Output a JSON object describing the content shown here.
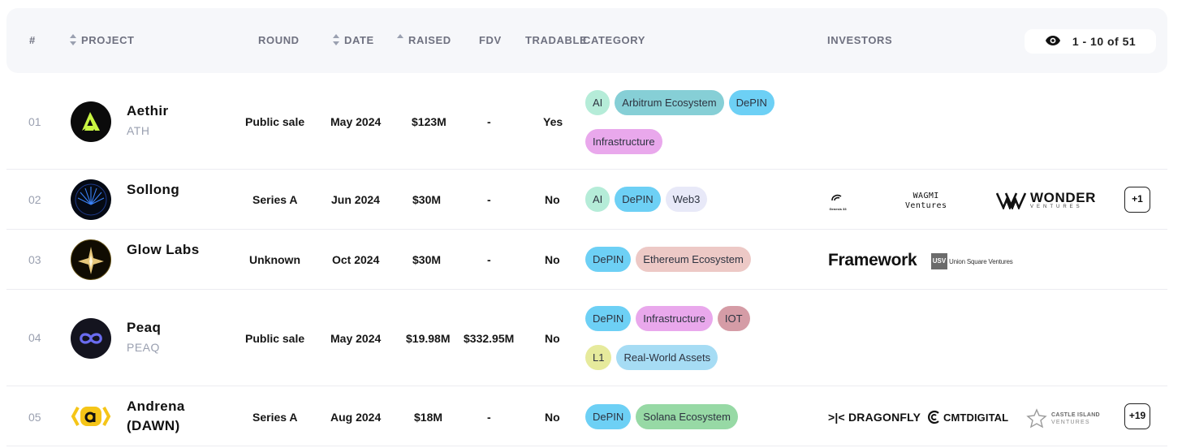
{
  "header": {
    "num": "#",
    "project": "PROJECT",
    "round": "ROUND",
    "date": "DATE",
    "raised": "RAISED",
    "fdv": "FDV",
    "tradable": "TRADABLE",
    "category": "CATEGORY",
    "investors": "INVESTORS",
    "pagination": "1 - 10 of 51"
  },
  "rows": [
    {
      "num": "01",
      "name": "Aethir",
      "symbol": "ATH",
      "round": "Public sale",
      "date": "May 2024",
      "raised": "$123M",
      "fdv": "-",
      "tradable": "Yes",
      "tags": [
        "AI",
        "Arbitrum Ecosystem",
        "DePIN",
        "Infrastructure"
      ]
    },
    {
      "num": "02",
      "name": "Sollong",
      "round": "Series A",
      "date": "Jun 2024",
      "raised": "$30M",
      "fdv": "-",
      "tradable": "No",
      "tags": [
        "AI",
        "DePIN",
        "Web3"
      ],
      "investors": [
        "Genesis 33",
        "WAGMI",
        "Ventures",
        "WONDER",
        "VENTURES"
      ],
      "more": "+1"
    },
    {
      "num": "03",
      "name": "Glow Labs",
      "round": "Unknown",
      "date": "Oct 2024",
      "raised": "$30M",
      "fdv": "-",
      "tradable": "No",
      "tags": [
        "DePIN",
        "Ethereum Ecosystem"
      ],
      "investors": [
        "Framework",
        "USV",
        "Union Square Ventures"
      ]
    },
    {
      "num": "04",
      "name": "Peaq",
      "symbol": "PEAQ",
      "round": "Public sale",
      "date": "May 2024",
      "raised": "$19.98M",
      "fdv": "$332.95M",
      "tradable": "No",
      "tags": [
        "DePIN",
        "Infrastructure",
        "IOT",
        "L1",
        "Real-World Assets"
      ]
    },
    {
      "num": "05",
      "name": "Andrena",
      "name2": "(DAWN)",
      "round": "Series A",
      "date": "Aug 2024",
      "raised": "$18M",
      "fdv": "-",
      "tradable": "No",
      "tags": [
        "DePIN",
        "Solana Ecosystem"
      ],
      "investors": [
        ">|< DRAGONFLY",
        "CMTDIGITAL",
        "CASTLE ISLAND",
        "VENTURES"
      ],
      "more": "+19"
    }
  ],
  "colors": {
    "header_bg": "#f6f7fa",
    "tag_ai": "#b5ecd8",
    "tag_depin": "#6dd0f5",
    "tag_infrastructure": "#e9a8ec"
  }
}
